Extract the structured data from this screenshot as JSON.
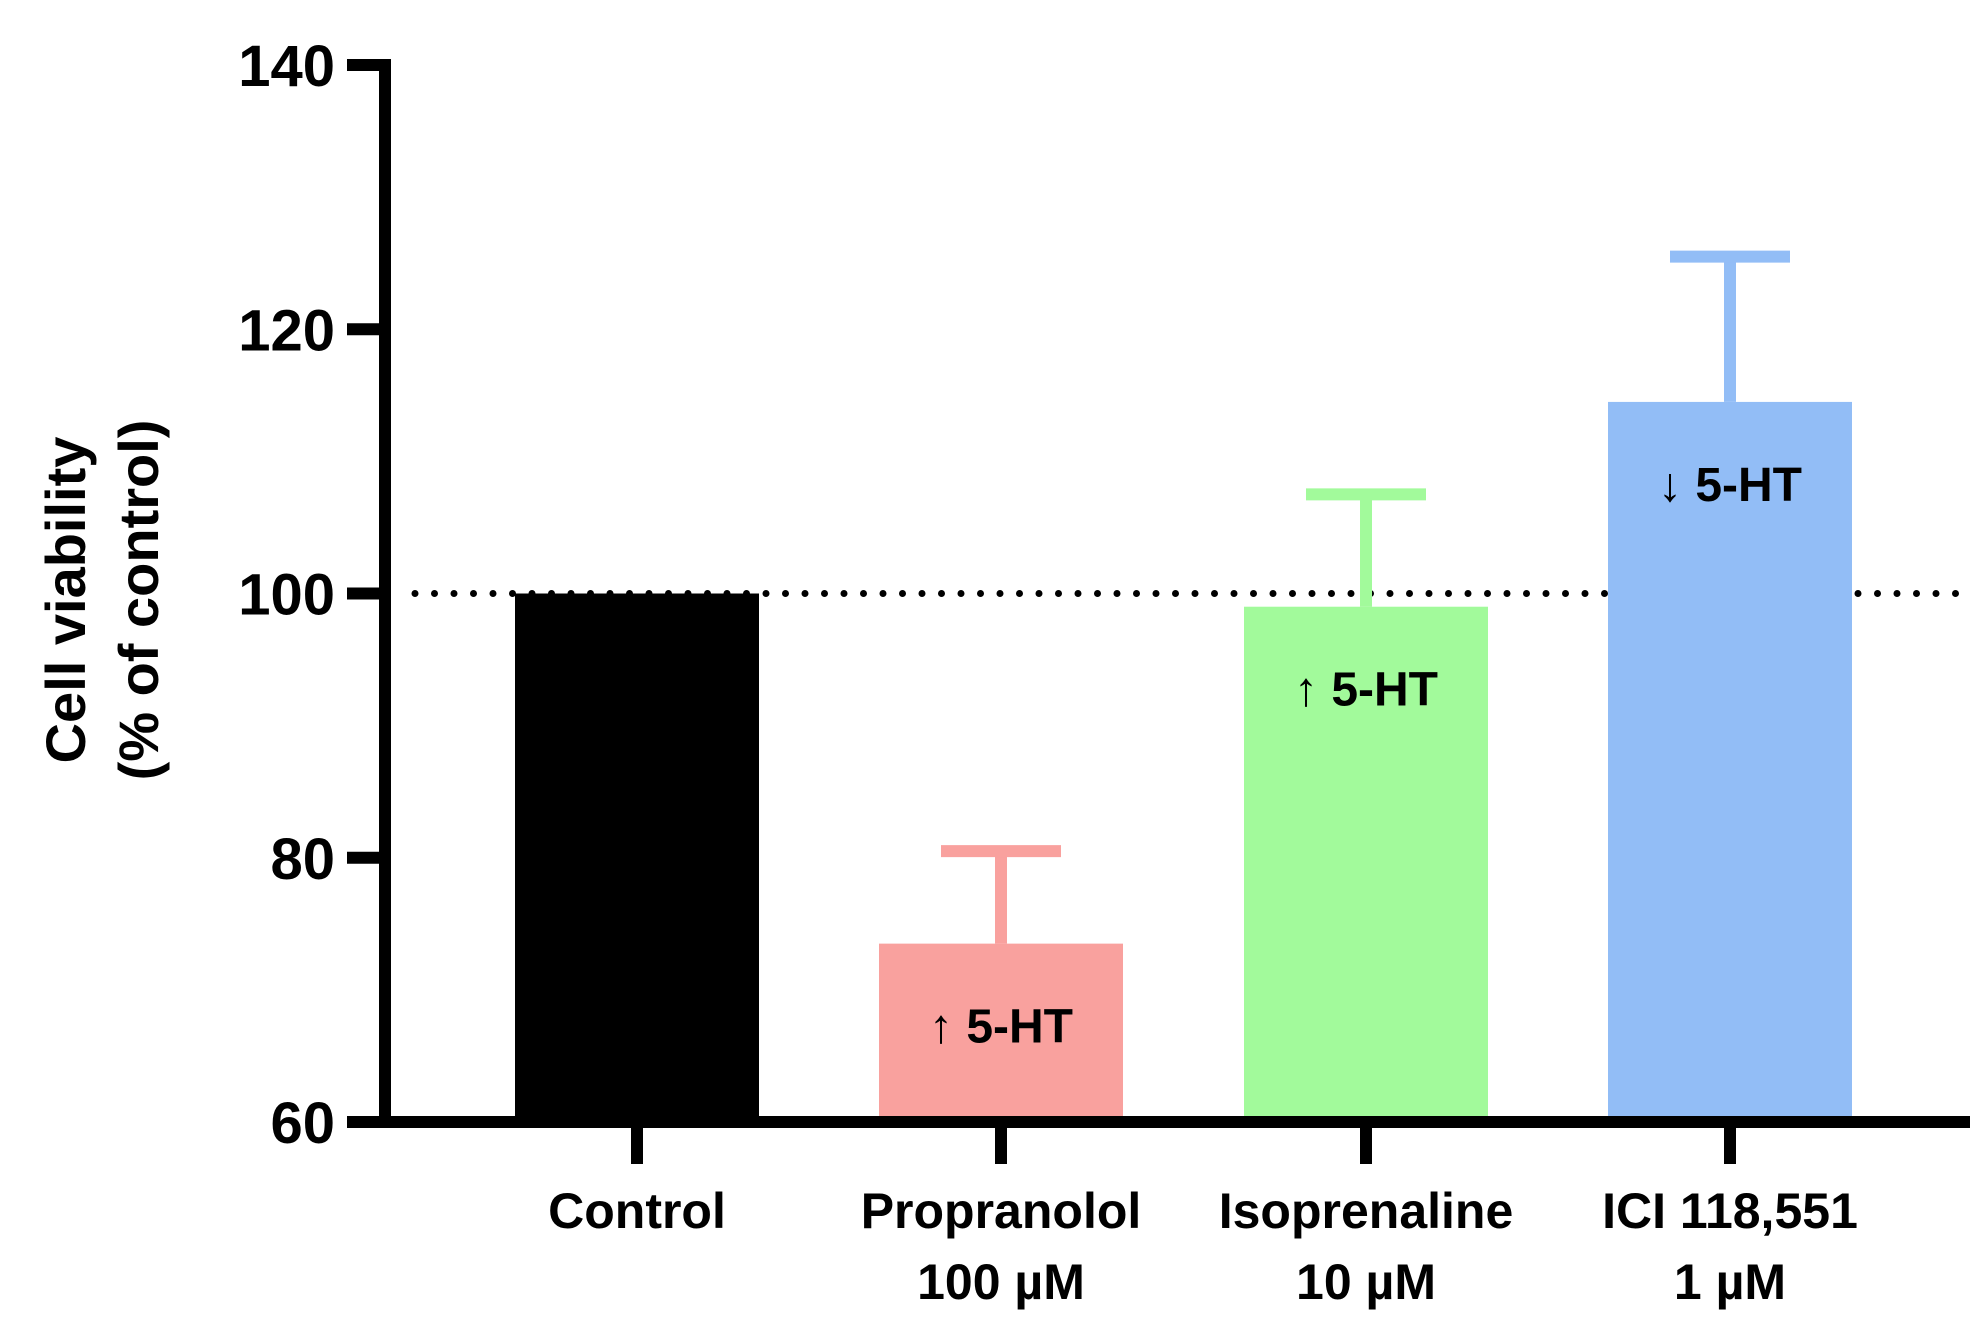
{
  "chart_data": {
    "type": "bar",
    "title": "",
    "xlabel": "",
    "ylabel_lines": [
      "Cell viability",
      "(% of control)"
    ],
    "ylim": [
      60,
      140
    ],
    "yticks": [
      60,
      80,
      100,
      120,
      140
    ],
    "reference_line": 100,
    "categories": [
      {
        "line1": "Control",
        "line2": ""
      },
      {
        "line1": "Propranolol",
        "line2": "100 µM"
      },
      {
        "line1": "Isoprenaline",
        "line2": "10 µM"
      },
      {
        "line1": "ICI 118,551",
        "line2": "1 µM"
      }
    ],
    "values": [
      100,
      73.5,
      99,
      114.5
    ],
    "errors": [
      0,
      7,
      8.5,
      11
    ],
    "colors": [
      "#000000",
      "#f9a19e",
      "#a2fa9b",
      "#92bdf6"
    ],
    "annotations": [
      "",
      "↑ 5-HT",
      "↑ 5-HT",
      "↓ 5-HT"
    ]
  }
}
